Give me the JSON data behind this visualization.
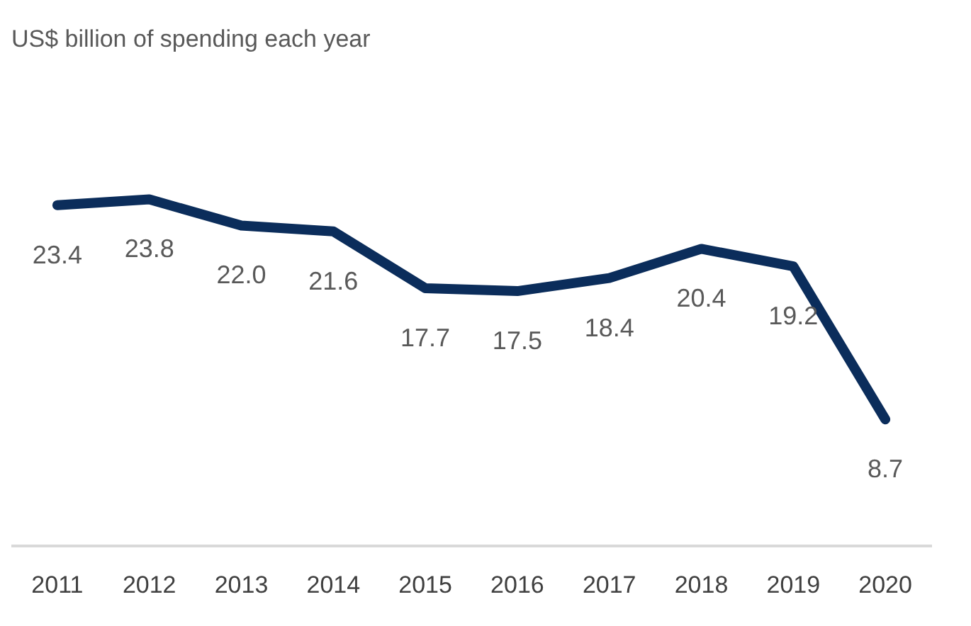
{
  "chart_data": {
    "type": "line",
    "title": "US$ billion of spending each year",
    "categories": [
      "2011",
      "2012",
      "2013",
      "2014",
      "2015",
      "2016",
      "2017",
      "2018",
      "2019",
      "2020"
    ],
    "series": [
      {
        "color": "#0b2d5b",
        "values": [
          23.4,
          23.8,
          22.0,
          21.6,
          17.7,
          17.5,
          18.4,
          20.4,
          19.2,
          8.7
        ],
        "value_labels": [
          "23.4",
          "23.8",
          "22.0",
          "21.6",
          "17.7",
          "17.5",
          "18.4",
          "20.4",
          "19.2",
          "8.7"
        ]
      }
    ],
    "data_labels": true,
    "grid": false,
    "legend": false,
    "marker": "none",
    "line_style": "solid"
  }
}
